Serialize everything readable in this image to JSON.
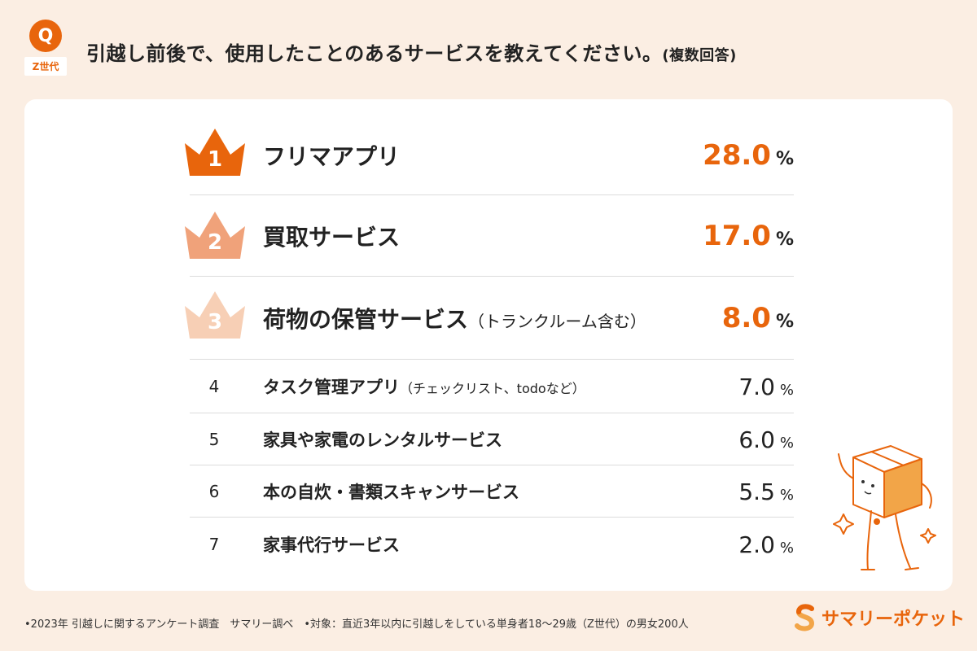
{
  "header": {
    "badge_letter": "Q",
    "badge_tag": "Z世代",
    "question": "引越し前後で、使用したことのあるサービスを教えてください。",
    "question_suffix": "(複数回答)"
  },
  "chart_data": {
    "type": "table",
    "title": "引越し前後で、使用したことのあるサービスを教えてください。(複数回答)",
    "unit": "%",
    "rows": [
      {
        "rank": "1",
        "label": "フリマアプリ",
        "note": "",
        "value": 28.0,
        "value_text": "28.0"
      },
      {
        "rank": "2",
        "label": "買取サービス",
        "note": "",
        "value": 17.0,
        "value_text": "17.0"
      },
      {
        "rank": "3",
        "label": "荷物の保管サービス",
        "note": "（トランクルーム含む）",
        "value": 8.0,
        "value_text": "8.0"
      },
      {
        "rank": "4",
        "label": "タスク管理アプリ",
        "note": "（チェックリスト、todoなど）",
        "value": 7.0,
        "value_text": "7.0"
      },
      {
        "rank": "5",
        "label": "家具や家電のレンタルサービス",
        "note": "",
        "value": 6.0,
        "value_text": "6.0"
      },
      {
        "rank": "6",
        "label": "本の自炊・書類スキャンサービス",
        "note": "",
        "value": 5.5,
        "value_text": "5.5"
      },
      {
        "rank": "7",
        "label": "家事代行サービス",
        "note": "",
        "value": 2.0,
        "value_text": "2.0"
      }
    ]
  },
  "colors": {
    "accent": "#e8650c",
    "crown_1": "#e8650c",
    "crown_2": "#f0a27a",
    "crown_3": "#f7cfb5",
    "background": "#fbeee3"
  },
  "footer": {
    "note": "•2023年 引越しに関するアンケート調査　サマリー調べ　•対象：直近3年以内に引越しをしている単身者18〜29歳（Z世代）の男女200人"
  },
  "brand": {
    "name": "サマリーポケット"
  }
}
